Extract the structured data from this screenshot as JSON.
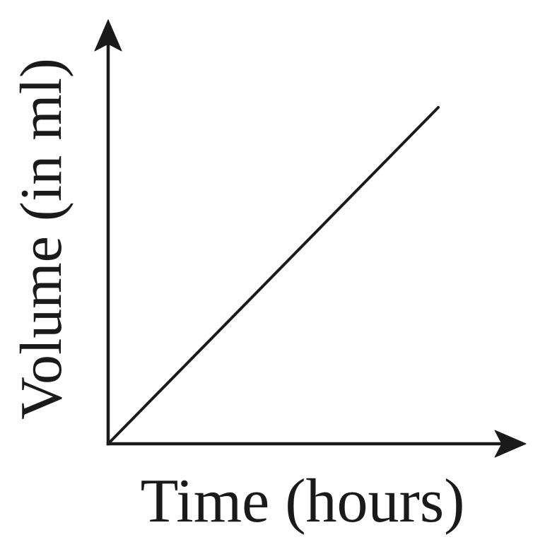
{
  "chart_data": {
    "type": "line",
    "xlabel": "Time (hours)",
    "ylabel": "Volume (in ml)",
    "grid": false,
    "legend": "none",
    "line_color": "#1a1a1a",
    "series": [
      {
        "x": [
          0,
          1
        ],
        "y": [
          0,
          1
        ]
      }
    ]
  }
}
